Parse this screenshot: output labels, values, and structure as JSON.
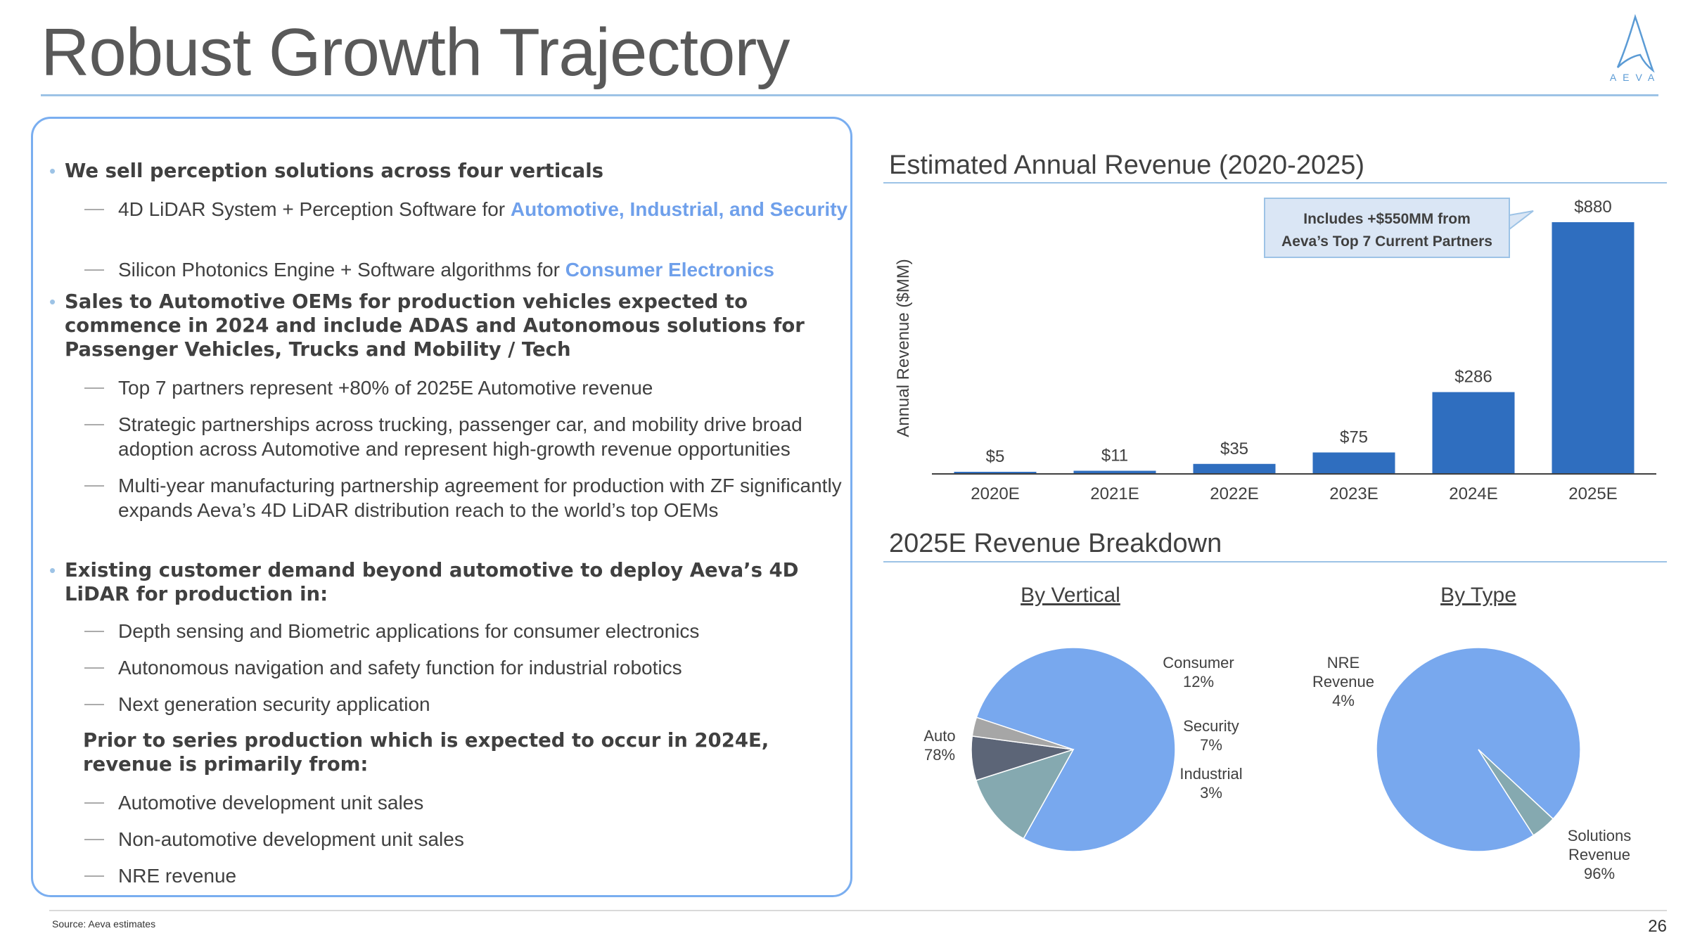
{
  "header": {
    "title": "Robust Growth Trajectory",
    "logo_text": "AEVA"
  },
  "bullets": {
    "b1": "We sell perception solutions across four verticals",
    "b1_1_text": "4D LiDAR System + Perception Software for ",
    "b1_1_hl": "Automotive, Industrial, and Security",
    "b1_2_text": "Silicon Photonics Engine + Software algorithms for ",
    "b1_2_hl": "Consumer Electronics",
    "b2": "Sales to Automotive OEMs for production vehicles expected to commence in 2024 and include ADAS and Autonomous solutions for Passenger Vehicles, Trucks and Mobility  / Tech",
    "b2_1": "Top 7 partners represent +80% of 2025E Automotive revenue",
    "b2_2": "Strategic partnerships across trucking, passenger car, and mobility drive broad adoption across Automotive and represent high-growth revenue opportunities",
    "b2_3": "Multi-year manufacturing partnership agreement for production with ZF significantly expands Aeva’s 4D LiDAR distribution reach  to the world’s top OEMs",
    "b3": "Existing customer demand beyond automotive to deploy Aeva’s 4D LiDAR for production in:",
    "b3_1": "Depth sensing and Biometric applications for consumer electronics",
    "b3_2": "Autonomous navigation and safety function for industrial robotics",
    "b3_3": "Next generation security application",
    "b4": "Prior to series production which is expected to occur in 2024E, revenue is primarily from:",
    "b4_1": "Automotive development unit sales",
    "b4_2": "Non-automotive development unit sales",
    "b4_3": "NRE revenue",
    "dash": "—",
    "dot": "•"
  },
  "sections": {
    "revenue_title": "Estimated Annual Revenue (2020-2025)",
    "breakdown_title": "2025E Revenue Breakdown"
  },
  "footer": {
    "source": "Source: Aeva estimates",
    "page": "26"
  },
  "chart_data": [
    {
      "type": "bar",
      "title": "Estimated Annual Revenue (2020-2025)",
      "ylabel": "Annual Revenue ($MM)",
      "xlabel": "",
      "categories": [
        "2020E",
        "2021E",
        "2022E",
        "2023E",
        "2024E",
        "2025E"
      ],
      "values": [
        5,
        11,
        35,
        75,
        286,
        880
      ],
      "labels": [
        "$5",
        "$11",
        "$35",
        "$75",
        "$286",
        "$880"
      ],
      "ylim": [
        0,
        880
      ],
      "color": "#2f6ebf",
      "annotation": "Includes +$550MM from Aeva’s Top 7 Current Partners"
    },
    {
      "type": "pie",
      "title": "By Vertical",
      "slices": [
        {
          "name": "Auto",
          "value": 78,
          "label": "78%",
          "color": "#78a8ee"
        },
        {
          "name": "Consumer",
          "value": 12,
          "label": "12%",
          "color": "#85a9b0"
        },
        {
          "name": "Security",
          "value": 7,
          "label": "7%",
          "color": "#5c6577"
        },
        {
          "name": "Industrial",
          "value": 3,
          "label": "3%",
          "color": "#a6a6a6"
        }
      ]
    },
    {
      "type": "pie",
      "title": "By Type",
      "slices": [
        {
          "name": "Solutions Revenue",
          "value": 96,
          "label": "96%",
          "color": "#78a8ee"
        },
        {
          "name": "NRE Revenue",
          "value": 4,
          "label": "4%",
          "color": "#85a9b0"
        }
      ]
    }
  ]
}
